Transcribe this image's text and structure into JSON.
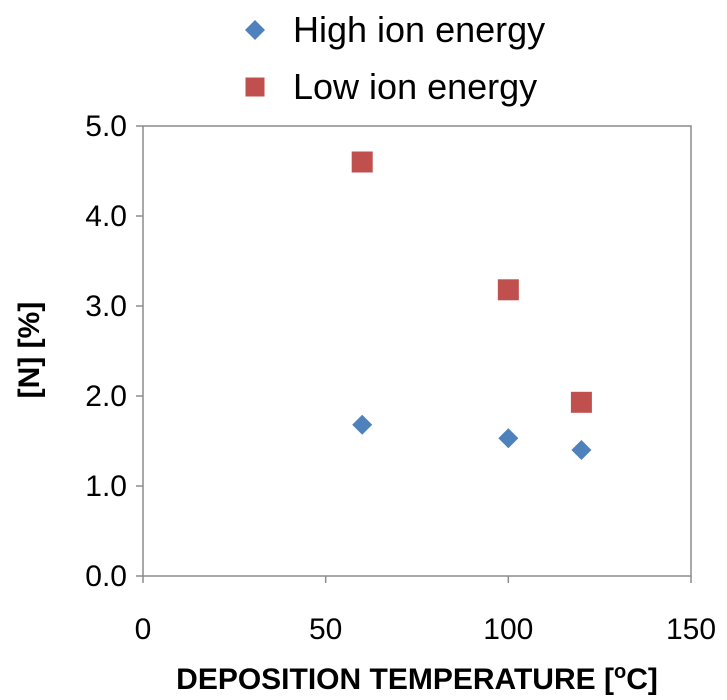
{
  "chart_data": {
    "type": "scatter",
    "title": "",
    "xlabel": "DEPOSITION TEMPERATURE  [°C]",
    "xlabel_parts": {
      "prefix": "DEPOSITION TEMPERATURE  [",
      "superscript": "o",
      "suffix": "C]"
    },
    "ylabel": "[N]  [%]",
    "xlim": [
      0,
      150
    ],
    "ylim": [
      0,
      5
    ],
    "xticks": [
      0,
      50,
      100,
      150
    ],
    "yticks": [
      0,
      1,
      2,
      3,
      4,
      5
    ],
    "xtick_labels": [
      "0",
      "50",
      "100",
      "150"
    ],
    "ytick_labels": [
      "0.0",
      "1.0",
      "2.0",
      "3.0",
      "4.0",
      "5.0"
    ],
    "grid": false,
    "legend_position": "top",
    "series": [
      {
        "name": "High ion energy",
        "marker": "diamond",
        "color": "#4F81BD",
        "points": [
          {
            "x": 60,
            "y": 1.68
          },
          {
            "x": 100,
            "y": 1.53
          },
          {
            "x": 120,
            "y": 1.4
          }
        ]
      },
      {
        "name": "Low ion energy",
        "marker": "square",
        "color": "#C0504D",
        "points": [
          {
            "x": 60,
            "y": 4.6
          },
          {
            "x": 100,
            "y": 3.18
          },
          {
            "x": 120,
            "y": 1.93
          }
        ]
      }
    ]
  }
}
